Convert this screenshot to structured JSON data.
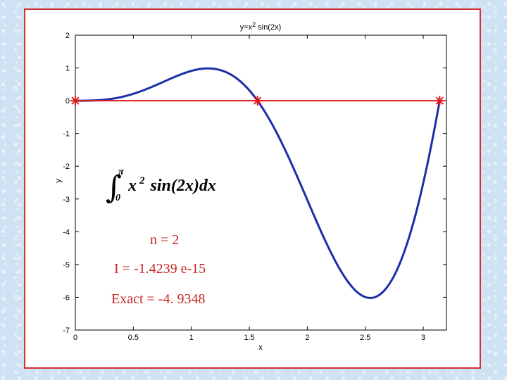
{
  "chart_data": {
    "type": "line",
    "title_parts": {
      "base": "y=x",
      "sup": "2",
      "rest": " sin(2x)"
    },
    "xlabel": "x",
    "ylabel": "y",
    "xlim": [
      0,
      3.2
    ],
    "ylim": [
      -7,
      2
    ],
    "xticks": [
      0,
      0.5,
      1,
      1.5,
      2,
      2.5,
      3
    ],
    "xtick_labels": [
      "0",
      "0.5",
      "1",
      "1.5",
      "2",
      "2.5",
      "3"
    ],
    "yticks": [
      2,
      1,
      0,
      -1,
      -2,
      -3,
      -4,
      -5,
      -6,
      -7
    ],
    "ytick_labels": [
      "2",
      "1",
      "0",
      "-1",
      "-2",
      "-3",
      "-4",
      "-5",
      "-6",
      "-7"
    ],
    "series": [
      {
        "function": "x^2*sin(2x)",
        "domain": [
          0,
          3.14159
        ],
        "color": "#1a2fa8"
      },
      {
        "x": [
          0,
          1.5708,
          3.14159
        ],
        "y": [
          0,
          0,
          0
        ],
        "color": "#e11b1b",
        "marker": "asterisk"
      }
    ],
    "annotations": {
      "integral": {
        "upper": "π",
        "lower": "0",
        "integrand": "x",
        "power": "2",
        "rest": "sin(2x)dx"
      },
      "n_line": "n = 2",
      "i_line": "I = -1.4239 e-15",
      "exact_line": "Exact = -4. 9348"
    }
  }
}
